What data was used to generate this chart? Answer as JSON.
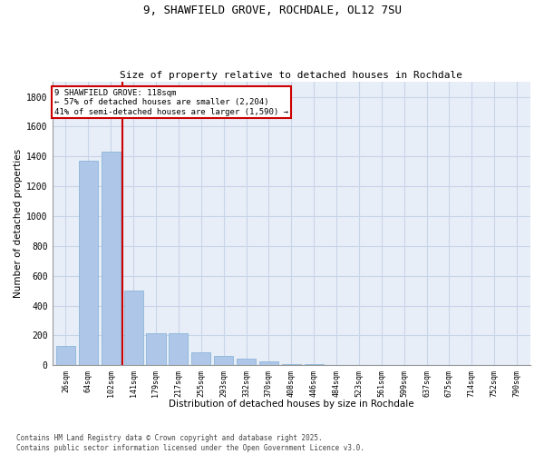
{
  "title1": "9, SHAWFIELD GROVE, ROCHDALE, OL12 7SU",
  "title2": "Size of property relative to detached houses in Rochdale",
  "xlabel": "Distribution of detached houses by size in Rochdale",
  "ylabel": "Number of detached properties",
  "categories": [
    "26sqm",
    "64sqm",
    "102sqm",
    "141sqm",
    "179sqm",
    "217sqm",
    "255sqm",
    "293sqm",
    "332sqm",
    "370sqm",
    "408sqm",
    "446sqm",
    "484sqm",
    "523sqm",
    "561sqm",
    "599sqm",
    "637sqm",
    "675sqm",
    "714sqm",
    "752sqm",
    "790sqm"
  ],
  "values": [
    130,
    1370,
    1430,
    500,
    215,
    215,
    90,
    65,
    45,
    28,
    10,
    10,
    5,
    0,
    0,
    0,
    0,
    0,
    0,
    0,
    0
  ],
  "bar_color": "#aec6e8",
  "bar_edge_color": "#7fafd4",
  "grid_color": "#c8d4e8",
  "background_color": "#e8eef8",
  "vline_x": 2.5,
  "vline_color": "#cc0000",
  "annotation_title": "9 SHAWFIELD GROVE: 118sqm",
  "annotation_line1": "← 57% of detached houses are smaller (2,204)",
  "annotation_line2": "41% of semi-detached houses are larger (1,590) →",
  "annotation_box_color": "#cc0000",
  "ylim": [
    0,
    1900
  ],
  "yticks": [
    0,
    200,
    400,
    600,
    800,
    1000,
    1200,
    1400,
    1600,
    1800
  ],
  "footer1": "Contains HM Land Registry data © Crown copyright and database right 2025.",
  "footer2": "Contains public sector information licensed under the Open Government Licence v3.0."
}
